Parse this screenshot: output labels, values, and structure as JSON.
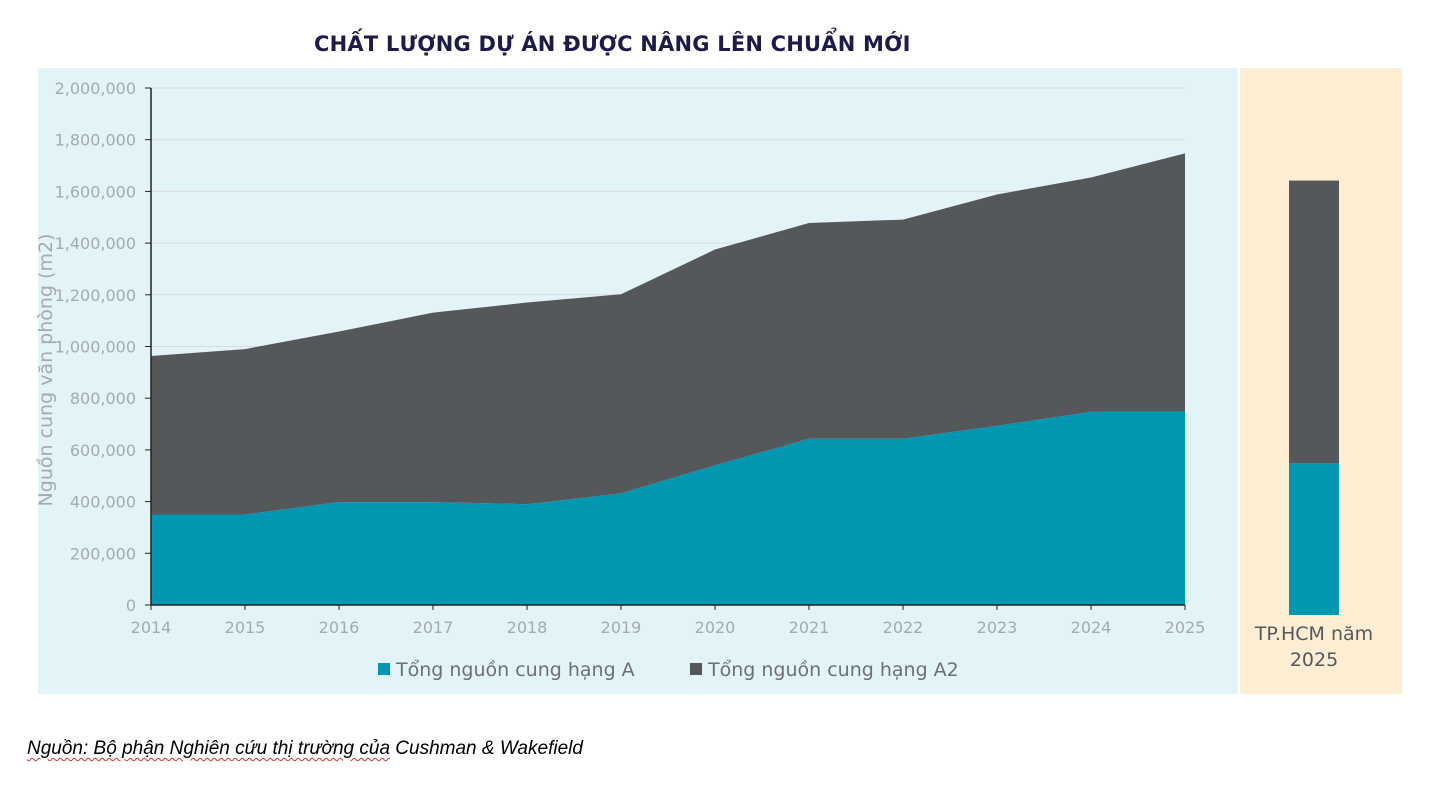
{
  "title": "CHẤT LƯỢNG DỰ ÁN ĐƯỢC NÂNG LÊN CHUẨN MỚI",
  "source": {
    "prefix": "Nguồn: Bộ phận Nghiên cứu thị trường của",
    "suffix": " Cushman & Wakefield"
  },
  "colors": {
    "grade_a": "#0097b2",
    "grade_a2": "#54585a",
    "main_panel_bg": "#e3f4f8",
    "side_panel_bg": "#fdeed3"
  },
  "chart_data": [
    {
      "type": "area",
      "stacked": true,
      "title": "",
      "xlabel": "",
      "ylabel": "Nguồn cung văn phòng (m2)",
      "ylim": [
        0,
        2000000
      ],
      "yticks": [
        0,
        200000,
        400000,
        600000,
        800000,
        1000000,
        1200000,
        1400000,
        1600000,
        1800000,
        2000000
      ],
      "ytick_labels": [
        "0",
        "200,000",
        "400,000",
        "600,000",
        "800,000",
        "1,000,000",
        "1,200,000",
        "1,400,000",
        "1,600,000",
        "1,800,000",
        "2,000,000"
      ],
      "grid": true,
      "legend_position": "bottom",
      "x": [
        "2014",
        "2015",
        "2016",
        "2017",
        "2018",
        "2019",
        "2020",
        "2021",
        "2022",
        "2023",
        "2024",
        "2025"
      ],
      "series": [
        {
          "name": "Tổng nguồn cung hạng A",
          "color": "#0097b2",
          "values": [
            350000,
            350000,
            398000,
            398000,
            390000,
            432000,
            540000,
            643000,
            643000,
            693000,
            747000,
            747000
          ]
        },
        {
          "name": "Tổng nguồn cung hạng A2",
          "color": "#54585a",
          "values": [
            613000,
            640000,
            660000,
            733000,
            780000,
            770000,
            835000,
            835000,
            848000,
            895000,
            907000,
            1000000
          ]
        }
      ]
    },
    {
      "type": "bar",
      "stacked": true,
      "title": "",
      "categories": [
        "TP.HCM năm 2025"
      ],
      "category_lines": [
        "TP.HCM năm",
        "2025"
      ],
      "ylim": [
        0,
        1700000
      ],
      "series": [
        {
          "name": "Tổng nguồn cung hạng A",
          "color": "#0097b2",
          "values": [
            590000
          ]
        },
        {
          "name": "Tổng nguồn cung hạng A2",
          "color": "#54585a",
          "values": [
            1100000
          ]
        }
      ]
    }
  ]
}
